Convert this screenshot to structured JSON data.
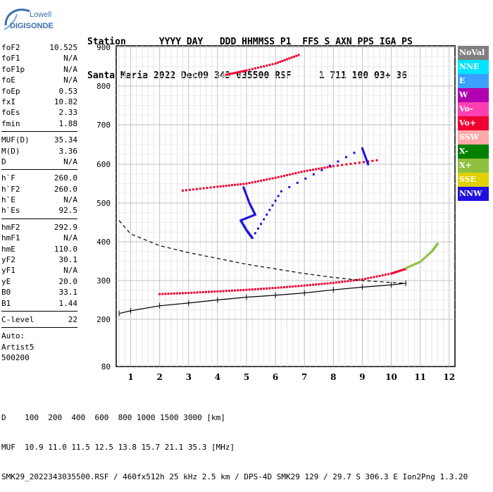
{
  "logo": {
    "line1": "Lowell",
    "line2": "DIGISONDE",
    "color": "#3a6fb0"
  },
  "header": {
    "labels": "Station      YYYY DAY   DDD HHMMSS P1  FFS S AXN PPS IGA PS",
    "values": "Santa Maria 2022 Dec09 343 035500 RSF     1 711 100 03+ 36"
  },
  "params": {
    "group1": [
      {
        "k": "foF2",
        "v": "10.525"
      },
      {
        "k": "foF1",
        "v": "N/A"
      },
      {
        "k": "foF1p",
        "v": "N/A"
      },
      {
        "k": "foE",
        "v": "N/A"
      },
      {
        "k": "foEp",
        "v": "0.53"
      },
      {
        "k": "fxI",
        "v": "10.82"
      },
      {
        "k": "foEs",
        "v": "2.33"
      },
      {
        "k": "fmin",
        "v": "1.88"
      }
    ],
    "group2": [
      {
        "k": "MUF(D)",
        "v": "35.34"
      },
      {
        "k": "M(D)",
        "v": "3.36"
      },
      {
        "k": "D",
        "v": "N/A"
      }
    ],
    "group3": [
      {
        "k": "h`F",
        "v": "260.0"
      },
      {
        "k": "h`F2",
        "v": "260.0"
      },
      {
        "k": "h`E",
        "v": "N/A"
      },
      {
        "k": "h`Es",
        "v": "92.5"
      }
    ],
    "group4": [
      {
        "k": "hmF2",
        "v": "292.9"
      },
      {
        "k": "hmF1",
        "v": "N/A"
      },
      {
        "k": "hmE",
        "v": "110.0"
      },
      {
        "k": "yF2",
        "v": "30.1"
      },
      {
        "k": "yF1",
        "v": "N/A"
      },
      {
        "k": "yE",
        "v": "20.0"
      },
      {
        "k": "B0",
        "v": "33.1"
      },
      {
        "k": "B1",
        "v": "1.44"
      }
    ],
    "group5": [
      {
        "k": "C-level",
        "v": "22"
      }
    ],
    "auto": [
      "Auto:",
      "Artist5",
      "500200"
    ]
  },
  "legend": [
    {
      "label": "NoVal",
      "color": "#808080"
    },
    {
      "label": "NNE",
      "color": "#00e5ff"
    },
    {
      "label": "E",
      "color": "#3ba0ff"
    },
    {
      "label": "W",
      "color": "#b000b0"
    },
    {
      "label": "Vo-",
      "color": "#ff40b0"
    },
    {
      "label": "Vo+",
      "color": "#f00030"
    },
    {
      "label": "SSW",
      "color": "#ffaaaa"
    },
    {
      "label": "X-",
      "color": "#008000"
    },
    {
      "label": "X+",
      "color": "#90c040"
    },
    {
      "label": "SSE",
      "color": "#e0d000"
    },
    {
      "label": "NNW",
      "color": "#2010e0"
    }
  ],
  "footer": {
    "line1": "D    100  200  400  600  800 1000 1500 3000 [km]",
    "line2": "MUF  10.9 11.0 11.5 12.5 13.8 15.7 21.1 35.3 [MHz]",
    "line3": "SMK29_2022343035500.RSF / 460fx512h 25 kHz 2.5 km / DPS-4D SMK29 129 / 29.7 S 306.3 E Ion2Png 1.3.20"
  },
  "chart_data": {
    "type": "scatter",
    "xlabel": "",
    "ylabel": "",
    "xlim": [
      0.5,
      12.2
    ],
    "ylim": [
      80,
      905
    ],
    "y_scale": "nonlinear-ionogram",
    "x_ticks": [
      1,
      2,
      3,
      4,
      5,
      6,
      7,
      8,
      9,
      10,
      11,
      12
    ],
    "y_ticks": [
      80,
      200,
      300,
      400,
      500,
      600,
      700,
      800,
      900
    ],
    "grid": true,
    "series": [
      {
        "kind": "echo",
        "color": "#f00030",
        "points": [
          [
            2.0,
            265
          ],
          [
            3,
            268
          ],
          [
            4,
            272
          ],
          [
            5,
            276
          ],
          [
            6,
            281
          ],
          [
            7,
            287
          ],
          [
            8,
            294
          ],
          [
            9,
            303
          ],
          [
            10,
            318
          ],
          [
            10.5,
            330
          ]
        ]
      },
      {
        "kind": "echo",
        "color": "#f00030",
        "points": [
          [
            4.3,
            829
          ],
          [
            5,
            840
          ],
          [
            6,
            858
          ],
          [
            6.8,
            880
          ]
        ]
      },
      {
        "kind": "echo",
        "color": "#f00030",
        "points": [
          [
            2.8,
            532
          ],
          [
            4,
            542
          ],
          [
            5,
            550
          ],
          [
            6,
            565
          ],
          [
            7,
            582
          ],
          [
            8,
            595
          ],
          [
            9.5,
            610
          ]
        ]
      },
      {
        "kind": "echo",
        "color": "#90c040",
        "points": [
          [
            10.5,
            332
          ],
          [
            11,
            348
          ],
          [
            11.4,
            375
          ],
          [
            11.6,
            395
          ]
        ]
      },
      {
        "kind": "echo",
        "color": "#2010e0",
        "points": [
          [
            4.9,
            540
          ],
          [
            5.1,
            500
          ],
          [
            5.3,
            470
          ],
          [
            4.8,
            455
          ],
          [
            5.0,
            430
          ],
          [
            5.2,
            410
          ],
          [
            6.2,
            530
          ],
          [
            9,
            640
          ],
          [
            9.2,
            600
          ]
        ]
      },
      {
        "kind": "profile",
        "style": "solid-ticks",
        "points": [
          [
            0.6,
            215
          ],
          [
            1,
            222
          ],
          [
            2,
            235
          ],
          [
            3,
            242
          ],
          [
            4,
            250
          ],
          [
            5,
            257
          ],
          [
            6,
            262
          ],
          [
            7,
            268
          ],
          [
            8,
            276
          ],
          [
            9,
            283
          ],
          [
            10,
            289
          ],
          [
            10.5,
            292.9
          ]
        ]
      },
      {
        "kind": "profile",
        "style": "dashed",
        "points": [
          [
            0.6,
            455
          ],
          [
            1,
            420
          ],
          [
            2,
            390
          ],
          [
            3,
            372
          ],
          [
            4,
            357
          ],
          [
            5,
            342
          ],
          [
            6,
            330
          ],
          [
            7,
            318
          ],
          [
            8,
            308
          ],
          [
            9,
            300
          ],
          [
            10,
            295
          ],
          [
            10.5,
            292.9
          ]
        ]
      }
    ]
  }
}
